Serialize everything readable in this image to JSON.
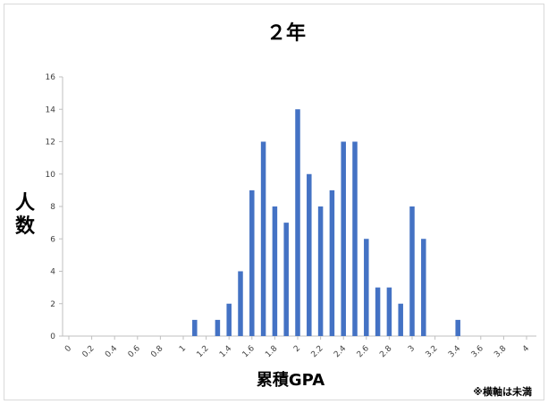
{
  "chart_data": {
    "type": "bar",
    "title": "２年",
    "xlabel": "累積GPA",
    "ylabel_chars": [
      "人",
      "数"
    ],
    "note": "※横軸は未満",
    "color": "#4472C4",
    "ylim": [
      0,
      16
    ],
    "yticks": [
      "0",
      "2",
      "4",
      "6",
      "8",
      "10",
      "12",
      "14",
      "16"
    ],
    "xticks": [
      "0",
      "0.2",
      "0.4",
      "0.6",
      "0.8",
      "1",
      "1.2",
      "1.4",
      "1.6",
      "1.8",
      "2",
      "2.2",
      "2.4",
      "2.6",
      "2.8",
      "3",
      "3.2",
      "3.4",
      "3.6",
      "3.8",
      "4"
    ],
    "x": [
      1.1,
      1.3,
      1.4,
      1.5,
      1.6,
      1.7,
      1.8,
      1.9,
      2.0,
      2.1,
      2.2,
      2.3,
      2.4,
      2.5,
      2.6,
      2.7,
      2.8,
      2.9,
      3.0,
      3.1,
      3.4
    ],
    "values": [
      1,
      1,
      2,
      4,
      9,
      12,
      8,
      7,
      14,
      10,
      8,
      9,
      12,
      12,
      6,
      3,
      3,
      2,
      8,
      6,
      1
    ],
    "grid": false,
    "legend": "none"
  }
}
